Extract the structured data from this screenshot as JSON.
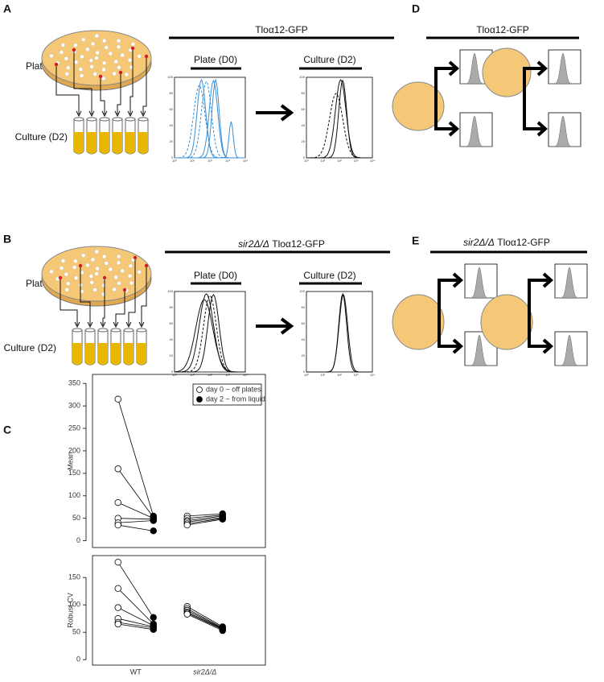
{
  "panels": {
    "A": {
      "letter": "A",
      "plate": "Plate (D0)",
      "culture": "Culture (D2)",
      "strain": "Tloα12-GFP",
      "hist_plate": "Plate (D0)",
      "hist_culture": "Culture (D2)"
    },
    "B": {
      "letter": "B",
      "plate": "Plate (D0)",
      "culture": "Culture (D2)",
      "strain_italic": "sir2Δ/Δ",
      "strain": "Tloα12-GFP",
      "hist_plate": "Plate (D0)",
      "hist_culture": "Culture (D2)"
    },
    "C": {
      "letter": "C"
    },
    "D": {
      "letter": "D",
      "strain": "Tloα12-GFP"
    },
    "E": {
      "letter": "E",
      "strain_italic": "sir2Δ/Δ",
      "strain": "Tloα12-GFP"
    }
  },
  "hist_axis": {
    "xticks": [
      "10⁰",
      "10¹",
      "10²",
      "10³",
      "10⁴"
    ],
    "yticks": [
      0,
      20,
      40,
      60,
      80,
      100
    ]
  },
  "chart_data": [
    {
      "type": "paired-dot",
      "ylabel": "Mean",
      "ylim": [
        -15,
        370
      ],
      "yticks": [
        0,
        50,
        100,
        150,
        200,
        250,
        300,
        350
      ],
      "series": [
        {
          "name": "day 0 − off plates",
          "marker": "open",
          "values": [
            [
              315,
              160,
              85,
              50,
              40,
              35
            ],
            [
              55,
              50,
              45,
              42,
              38,
              35
            ]
          ]
        },
        {
          "name": "day 2 − from liquid",
          "marker": "filled",
          "values": [
            [
              55,
              52,
              50,
              48,
              45,
              22
            ],
            [
              60,
              57,
              55,
              52,
              50,
              48
            ]
          ]
        }
      ]
    },
    {
      "type": "paired-dot",
      "ylabel": "Robust CV",
      "ylim": [
        -10,
        190
      ],
      "yticks": [
        0,
        50,
        100,
        150
      ],
      "categories": [
        "WT",
        "sir2Δ/Δ"
      ],
      "series": [
        {
          "marker": "open",
          "values": [
            [
              178,
              130,
              95,
              75,
              68,
              65
            ],
            [
              97,
              93,
              90,
              87,
              85,
              83
            ]
          ]
        },
        {
          "marker": "filled",
          "values": [
            [
              77,
              65,
              62,
              60,
              58,
              55
            ],
            [
              60,
              58,
              57,
              56,
              55,
              53
            ]
          ]
        }
      ]
    }
  ]
}
